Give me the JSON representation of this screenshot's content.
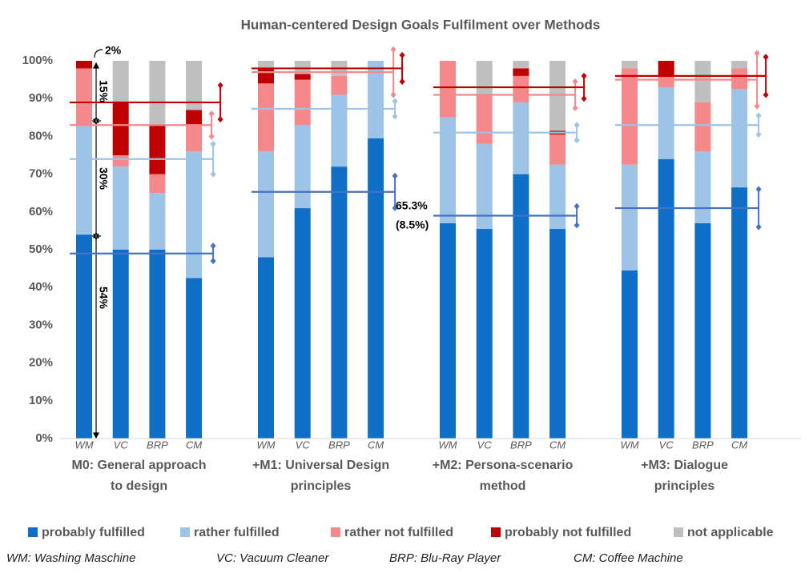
{
  "chart_data": {
    "type": "bar",
    "stacked": true,
    "title": "Human-centered Design Goals Fulfilment over Methods",
    "groups": [
      [
        "M0: General approach",
        "to design"
      ],
      [
        "+M1: Universal Design",
        "principles"
      ],
      [
        "+M2: Persona-scenario",
        "method"
      ],
      [
        "+M3: Dialogue",
        "principles"
      ]
    ],
    "categories": [
      "WM",
      "VC",
      "BRP",
      "CM",
      "WM",
      "VC",
      "BRP",
      "CM",
      "WM",
      "VC",
      "BRP",
      "CM",
      "WM",
      "VC",
      "BRP",
      "CM"
    ],
    "series": [
      {
        "name": "probably fulfilled",
        "color": "#0f6fc6",
        "line_color": "#4472c4",
        "values": [
          54,
          50,
          50,
          42.5,
          48,
          61,
          72,
          79.5,
          57,
          55.5,
          70,
          55.5,
          44.5,
          74,
          57,
          66.5
        ],
        "mean": [
          49,
          65.3,
          59,
          61
        ],
        "error": [
          2,
          4.25,
          2.5,
          5
        ]
      },
      {
        "name": "rather fulfilled",
        "color": "#9dc3e6",
        "line_color": "#9dc3e6",
        "values": [
          29,
          22,
          15,
          33.5,
          28,
          22,
          19,
          20.5,
          28,
          22.5,
          19,
          17,
          28,
          19,
          19,
          26
        ],
        "mean": [
          74,
          87.3,
          81,
          83
        ],
        "error": [
          4,
          2,
          2,
          2.5
        ]
      },
      {
        "name": "rather not fulfilled",
        "color": "#f4888a",
        "line_color": "#f4888a",
        "values": [
          15,
          3,
          5,
          7,
          18,
          12,
          5,
          0,
          15,
          13,
          7,
          8,
          25.5,
          3,
          13,
          5.5
        ],
        "mean": [
          83,
          97,
          91,
          95
        ],
        "error": [
          3,
          6,
          3.5,
          7
        ]
      },
      {
        "name": "probably not fulfilled",
        "color": "#c00000",
        "line_color": "#c00000",
        "values": [
          2,
          14,
          13,
          4,
          4,
          1.5,
          0,
          0,
          0,
          0,
          2,
          1,
          0,
          4,
          0,
          0
        ],
        "mean": [
          89,
          98,
          93,
          96
        ],
        "error": [
          4.5,
          3.5,
          3,
          5
        ]
      },
      {
        "name": "not applicable",
        "color": "#bfbfbf",
        "values": [
          0,
          11,
          17,
          13,
          2,
          3.5,
          4,
          0,
          0,
          9,
          2,
          18.5,
          2,
          0,
          11,
          2
        ]
      }
    ],
    "ylim": [
      0,
      100
    ],
    "yticks": [
      {
        "value": 0,
        "label": "0%"
      },
      {
        "value": 10,
        "label": "10%"
      },
      {
        "value": 20,
        "label": "20%"
      },
      {
        "value": 30,
        "label": "30%"
      },
      {
        "value": 40,
        "label": "40%"
      },
      {
        "value": 50,
        "label": "50%"
      },
      {
        "value": 60,
        "label": "60%"
      },
      {
        "value": 70,
        "label": "70%"
      },
      {
        "value": 80,
        "label": "80%"
      },
      {
        "value": 90,
        "label": "90%"
      },
      {
        "value": 100,
        "label": "100%"
      }
    ],
    "grid": false,
    "legend": "bottom",
    "annotations": [
      "2%",
      "15%",
      "30%",
      "54%",
      "65.3%",
      "(8.5%)"
    ],
    "footnote": [
      "WM: Washing Maschine",
      "VC: Vacuum Cleaner",
      "BRP: Blu-Ray Player",
      "CM: Coffee Machine"
    ]
  }
}
